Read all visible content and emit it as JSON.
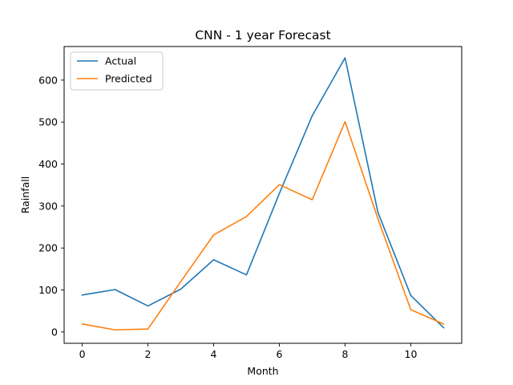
{
  "chart_data": {
    "type": "line",
    "title": "CNN -  1 year Forecast",
    "xlabel": "Month",
    "ylabel": "Rainfall",
    "x": [
      0,
      1,
      2,
      3,
      4,
      5,
      6,
      7,
      8,
      9,
      10,
      11
    ],
    "xlim": [
      -0.55,
      11.55
    ],
    "ylim": [
      -27,
      680
    ],
    "xticks": [
      0,
      2,
      4,
      6,
      8,
      10
    ],
    "yticks": [
      0,
      100,
      200,
      300,
      400,
      500,
      600
    ],
    "legend_position": "top-left",
    "grid": false,
    "series": [
      {
        "name": "Actual",
        "color": "#1f77b4",
        "values": [
          88,
          101,
          62,
          102,
          172,
          136,
          330,
          515,
          653,
          285,
          87,
          10
        ]
      },
      {
        "name": "Predicted",
        "color": "#ff7f0e",
        "values": [
          19,
          5,
          7,
          120,
          231,
          275,
          351,
          315,
          501,
          270,
          53,
          19
        ]
      }
    ]
  }
}
